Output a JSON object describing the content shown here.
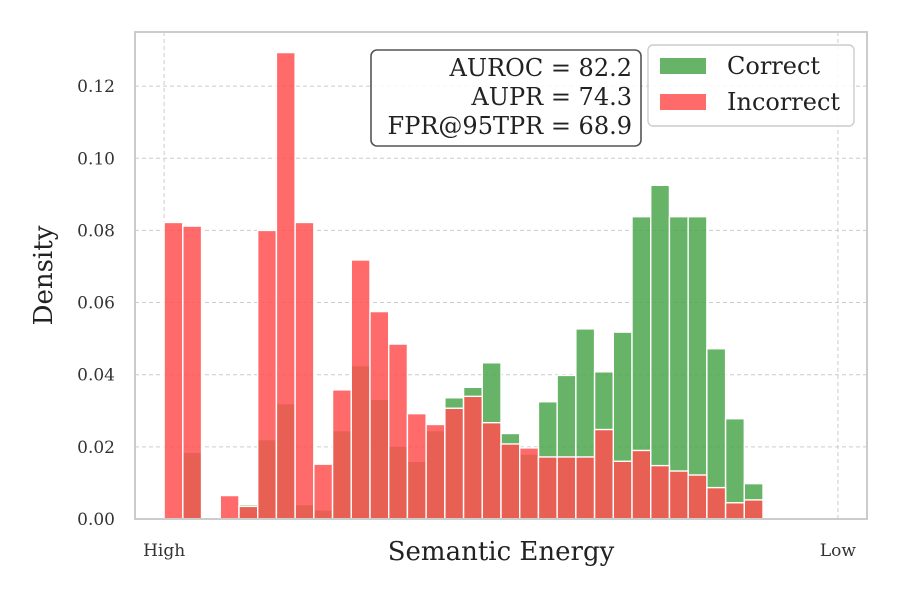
{
  "chart_data": {
    "type": "bar",
    "title": "",
    "xlabel": "Semantic Energy",
    "ylabel": "Density",
    "x_end_labels": {
      "left": "High",
      "right": "Low"
    },
    "ylim": [
      0,
      0.135
    ],
    "yticks": [
      "0.00",
      "0.02",
      "0.04",
      "0.06",
      "0.08",
      "0.10",
      "0.12"
    ],
    "grid": true,
    "bin_edges": [
      1.0,
      1.45,
      1.9,
      2.35,
      2.8,
      3.25,
      3.7,
      4.15,
      4.6,
      5.05,
      5.5,
      5.95,
      6.4,
      6.85,
      7.3,
      7.75,
      8.2,
      8.65,
      9.1,
      9.55,
      10.0,
      10.45,
      10.9,
      11.35,
      11.8,
      12.25,
      12.7,
      13.15,
      13.6,
      14.05,
      14.5,
      14.95,
      15.4,
      15.85,
      16.3,
      16.75,
      17.2
    ],
    "xlim": [
      0.3,
      17.9
    ],
    "x_end_positions": [
      1.0,
      17.2
    ],
    "series": [
      {
        "name": "Correct",
        "color": "#4ca64c",
        "values": [
          0,
          0.0185,
          0,
          0,
          0.004,
          0.022,
          0.032,
          0.004,
          0.0025,
          0.0245,
          0.0425,
          0.0332,
          0.0202,
          0.016,
          0.0245,
          0.0336,
          0.0365,
          0.0433,
          0.0237,
          0.018,
          0.0325,
          0.0398,
          0.0527,
          0.0408,
          0.0518,
          0.0838,
          0.0925,
          0.0838,
          0.0838,
          0.0472,
          0.0278,
          0.0098,
          0,
          0,
          0,
          0
        ]
      },
      {
        "name": "Incorrect",
        "color": "#ff5050",
        "values": [
          0.0822,
          0.0812,
          0,
          0.0065,
          0.0035,
          0.08,
          0.1293,
          0.0822,
          0.0152,
          0.0358,
          0.0718,
          0.0575,
          0.0485,
          0.0292,
          0.0262,
          0.0307,
          0.034,
          0.0267,
          0.0208,
          0.0197,
          0.0172,
          0.0172,
          0.0172,
          0.0248,
          0.016,
          0.019,
          0.0148,
          0.0133,
          0.0122,
          0.0087,
          0.0045,
          0.0053,
          0,
          0,
          0,
          0
        ]
      }
    ],
    "legend": {
      "placement": "top-right",
      "entries": [
        "Correct",
        "Incorrect"
      ]
    },
    "metrics": [
      "AUROC = 82.2",
      "AUPR = 74.3",
      "FPR@95TPR = 68.9"
    ]
  }
}
